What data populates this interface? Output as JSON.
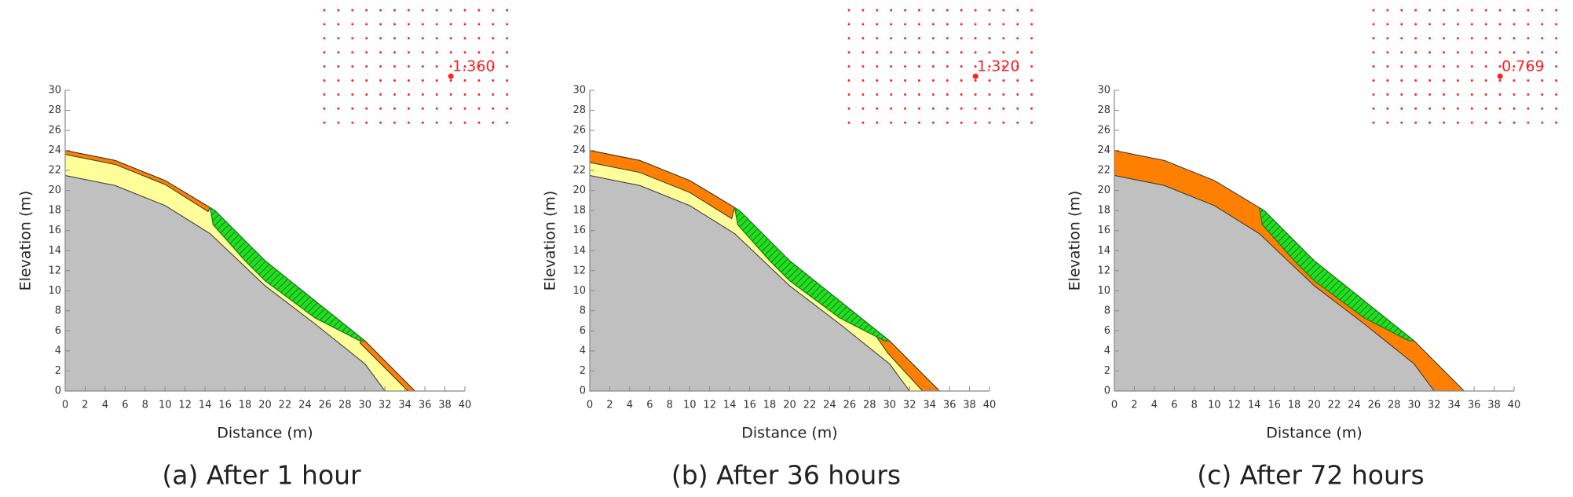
{
  "chart_data": [
    {
      "type": "area",
      "caption": "(a) After 1 hour",
      "xlabel": "Distance (m)",
      "ylabel": "Elevation (m)",
      "xlim": [
        0,
        40
      ],
      "ylim": [
        0,
        30
      ],
      "xticks": [
        0,
        2,
        4,
        6,
        8,
        10,
        12,
        14,
        16,
        18,
        20,
        22,
        24,
        26,
        28,
        30,
        32,
        34,
        36,
        38,
        40
      ],
      "yticks": [
        0,
        2,
        4,
        6,
        8,
        10,
        12,
        14,
        16,
        18,
        20,
        22,
        24,
        26,
        28,
        30
      ],
      "fos": {
        "value": 1.36,
        "label": "1.360",
        "x": 38.6,
        "y": 31.4,
        "color": "#ff2020"
      },
      "layers": [
        {
          "color": "#ffff99",
          "x": [
            0,
            0,
            5,
            10,
            14.5,
            20,
            25,
            30,
            35
          ],
          "y": [
            0,
            24,
            23,
            21,
            18.3,
            13,
            9,
            5,
            0
          ]
        },
        {
          "color": "#c0c0c0",
          "x": [
            0,
            0,
            5,
            10,
            14.5,
            20,
            25,
            30,
            32
          ],
          "y": [
            0,
            21.5,
            20.5,
            18.5,
            15.7,
            10.5,
            6.7,
            2.7,
            0
          ]
        },
        {
          "color": "#ff8000",
          "x": [
            0,
            5,
            10,
            14.5,
            14.3,
            10,
            5,
            0
          ],
          "y": [
            24,
            23,
            21,
            18.3,
            17.9,
            20.6,
            22.6,
            23.6
          ]
        },
        {
          "color": "#ff8000",
          "x": [
            29.7,
            30,
            35,
            34.3,
            29.5
          ],
          "y": [
            5.2,
            5,
            0,
            0,
            4.8
          ]
        },
        {
          "color": "#22dd22",
          "x": [
            14.5,
            15,
            20,
            25,
            30,
            29.5,
            25,
            20,
            18,
            14.8
          ],
          "y": [
            18.3,
            18,
            13,
            9,
            5,
            5,
            7.3,
            11,
            13,
            16.6
          ]
        }
      ]
    },
    {
      "type": "area",
      "caption": "(b) After 36 hours",
      "xlabel": "Distance (m)",
      "ylabel": "Elevation (m)",
      "xlim": [
        0,
        40
      ],
      "ylim": [
        0,
        30
      ],
      "xticks": [
        0,
        2,
        4,
        6,
        8,
        10,
        12,
        14,
        16,
        18,
        20,
        22,
        24,
        26,
        28,
        30,
        32,
        34,
        36,
        38,
        40
      ],
      "yticks": [
        0,
        2,
        4,
        6,
        8,
        10,
        12,
        14,
        16,
        18,
        20,
        22,
        24,
        26,
        28,
        30
      ],
      "fos": {
        "value": 1.32,
        "label": "1.320",
        "x": 38.6,
        "y": 31.4,
        "color": "#ff2020"
      },
      "layers": [
        {
          "color": "#ffff99",
          "x": [
            0,
            0,
            5,
            10,
            14.5,
            20,
            25,
            30,
            35
          ],
          "y": [
            0,
            24,
            23,
            21,
            18.3,
            13,
            9,
            5,
            0
          ]
        },
        {
          "color": "#c0c0c0",
          "x": [
            0,
            0,
            5,
            10,
            14.5,
            20,
            25,
            30,
            32
          ],
          "y": [
            0,
            21.5,
            20.5,
            18.5,
            15.7,
            10.5,
            6.7,
            2.7,
            0
          ]
        },
        {
          "color": "#ff8000",
          "x": [
            0,
            5,
            10,
            14.5,
            14.2,
            10,
            5,
            0
          ],
          "y": [
            24,
            23,
            21,
            18.3,
            17.2,
            19.8,
            21.8,
            22.8
          ]
        },
        {
          "color": "#ff8000",
          "x": [
            28.5,
            30,
            35,
            33.3,
            29.8
          ],
          "y": [
            5.7,
            5,
            0,
            0,
            3.8
          ]
        },
        {
          "color": "#22dd22",
          "x": [
            14.5,
            15,
            20,
            25,
            30,
            29.5,
            25,
            20,
            18,
            14.8
          ],
          "y": [
            18.3,
            18,
            13,
            9,
            5,
            5,
            7.3,
            11,
            13,
            16.6
          ]
        }
      ]
    },
    {
      "type": "area",
      "caption": "(c) After 72 hours",
      "xlabel": "Distance (m)",
      "ylabel": "Elevation (m)",
      "xlim": [
        0,
        40
      ],
      "ylim": [
        0,
        30
      ],
      "xticks": [
        0,
        2,
        4,
        6,
        8,
        10,
        12,
        14,
        16,
        18,
        20,
        22,
        24,
        26,
        28,
        30,
        32,
        34,
        36,
        38,
        40
      ],
      "yticks": [
        0,
        2,
        4,
        6,
        8,
        10,
        12,
        14,
        16,
        18,
        20,
        22,
        24,
        26,
        28,
        30
      ],
      "fos": {
        "value": 0.769,
        "label": "0.769",
        "x": 38.6,
        "y": 31.4,
        "color": "#ff2020"
      },
      "layers": [
        {
          "color": "#ff8000",
          "x": [
            0,
            0,
            5,
            10,
            14.5,
            20,
            25,
            30,
            35
          ],
          "y": [
            0,
            24,
            23,
            21,
            18.3,
            13,
            9,
            5,
            0
          ]
        },
        {
          "color": "#c0c0c0",
          "x": [
            0,
            0,
            5,
            10,
            14.5,
            20,
            25,
            30,
            32
          ],
          "y": [
            0,
            21.5,
            20.5,
            18.5,
            15.7,
            10.5,
            6.7,
            2.7,
            0
          ]
        },
        {
          "color": "#22dd22",
          "x": [
            14.5,
            15,
            20,
            25,
            30,
            29.5,
            25,
            20,
            18,
            14.8
          ],
          "y": [
            18.3,
            18,
            13,
            9,
            5,
            5,
            7.3,
            11,
            13,
            16.6
          ]
        }
      ]
    }
  ]
}
